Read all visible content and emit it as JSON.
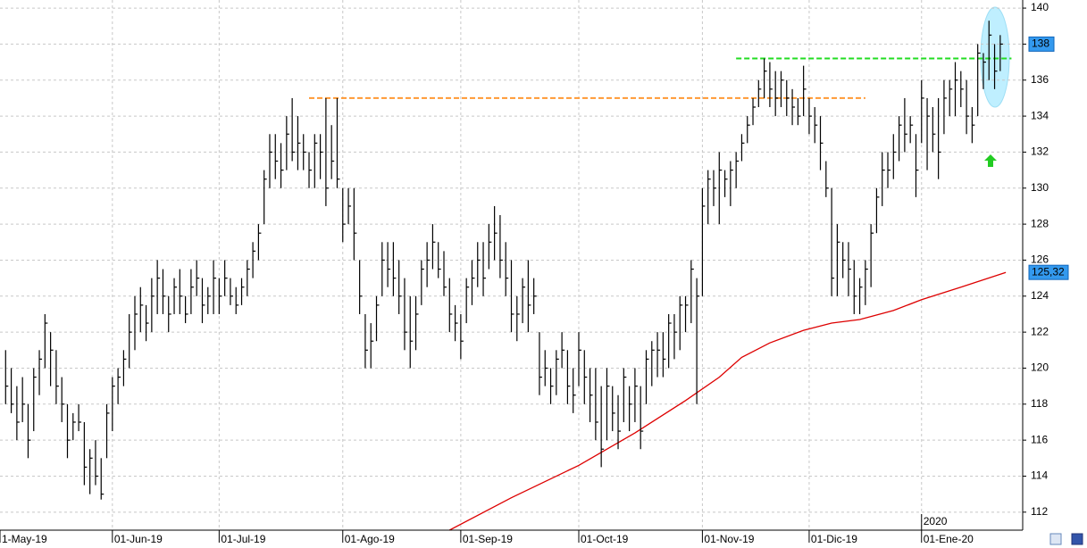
{
  "chart_data": {
    "type": "ohlc",
    "xlim": [
      -1,
      181
    ],
    "ylim": [
      111,
      140.45
    ],
    "yticks": [
      112,
      114,
      116,
      118,
      120,
      122,
      124,
      126,
      128,
      130,
      132,
      134,
      136,
      138,
      140
    ],
    "xticks": [
      {
        "value": -1,
        "label": "1-May-19"
      },
      {
        "value": 19,
        "label": "01-Jun-19"
      },
      {
        "value": 38,
        "label": "01-Jul-19"
      },
      {
        "value": 60,
        "label": "01-Ago-19"
      },
      {
        "value": 81,
        "label": "01-Sep-19"
      },
      {
        "value": 102,
        "label": "01-Oct-19"
      },
      {
        "value": 124,
        "label": "01-Nov-19"
      },
      {
        "value": 143,
        "label": "01-Dic-19"
      },
      {
        "value": 163,
        "label": "01-Ene-20"
      }
    ],
    "year_label": {
      "value": 163,
      "label": "2020"
    },
    "grid": true,
    "color": "#000000",
    "high": [
      121,
      120,
      119,
      119.5,
      118,
      120,
      121,
      123,
      122,
      121,
      119.5,
      118,
      117.5,
      118,
      117,
      115.5,
      116,
      115,
      118,
      119.5,
      120,
      121,
      123,
      124,
      124.5,
      123.5,
      125,
      126,
      125.5,
      124,
      125,
      125.5,
      124,
      125.5,
      126,
      125,
      124.5,
      126,
      125,
      126,
      125,
      124.5,
      125,
      126,
      127,
      128,
      131,
      133,
      133,
      132.5,
      134,
      135,
      134,
      133,
      132,
      133,
      133,
      135,
      133.5,
      135,
      130,
      130,
      130,
      126,
      123,
      122.5,
      124,
      127,
      127,
      127,
      126,
      125,
      124,
      124,
      126,
      127,
      128,
      127,
      126.5,
      125,
      123.5,
      123,
      125,
      126,
      127,
      127,
      128,
      129,
      128.5,
      127,
      126,
      124,
      125,
      126,
      125,
      122,
      121,
      120,
      121,
      122,
      121,
      120,
      122,
      121,
      120,
      120,
      119,
      120,
      119,
      118.5,
      120,
      119,
      120,
      119,
      121,
      121.5,
      122,
      122,
      123,
      123,
      124,
      124,
      126,
      125,
      130,
      131,
      131,
      132,
      131,
      131.5,
      132,
      133,
      134,
      135,
      136,
      137.2,
      137,
      136.5,
      136.5,
      136,
      135.5,
      135,
      136.8,
      135,
      134.5,
      134,
      131.5,
      130,
      128,
      127,
      127,
      126,
      125,
      126,
      128,
      130,
      132,
      132,
      133,
      134,
      135,
      134,
      133,
      136,
      135,
      134.5,
      135,
      136,
      136,
      137,
      136.5,
      136,
      134.5,
      138,
      137.5,
      139.3,
      138,
      138.5
    ],
    "low": [
      118,
      117.5,
      116,
      117,
      115,
      116.5,
      118.5,
      120,
      119,
      118,
      117,
      115,
      116,
      116.5,
      113.5,
      113,
      113.5,
      112.7,
      115,
      116.5,
      118,
      119,
      120,
      121,
      122,
      121.5,
      122,
      123,
      123,
      122,
      123,
      123,
      122.5,
      123,
      124,
      122.5,
      123,
      123,
      123,
      124,
      123.5,
      123,
      123.5,
      124,
      125,
      126,
      128,
      130,
      130.5,
      130,
      131,
      131.5,
      131,
      131,
      130,
      130,
      130.5,
      129,
      130.5,
      130,
      127,
      128,
      126,
      123,
      120,
      120,
      121.5,
      124,
      124.5,
      124,
      123,
      121,
      120,
      121,
      123.5,
      124.5,
      125.5,
      125,
      124,
      122,
      121.5,
      120.5,
      122.5,
      123.5,
      124.5,
      124,
      125.5,
      126,
      125,
      124,
      122,
      121.5,
      122.5,
      122,
      123,
      118.5,
      119,
      118,
      118.5,
      120,
      118,
      117.5,
      119,
      118,
      117,
      116,
      114.5,
      116,
      116.5,
      115.5,
      117,
      116.5,
      117,
      115.5,
      118,
      119,
      119.5,
      119.5,
      120,
      120.5,
      121,
      122,
      122.5,
      118,
      124,
      128,
      129,
      128,
      129.5,
      129,
      130,
      131.5,
      132.5,
      133.5,
      134.5,
      135,
      134.5,
      134,
      134.5,
      134,
      133.5,
      133.5,
      134,
      133,
      132.5,
      131,
      129.5,
      124,
      124,
      125,
      124,
      123,
      123,
      123.5,
      124.5,
      127.5,
      129,
      130,
      130.5,
      131.5,
      132,
      132.5,
      129.5,
      132.5,
      131,
      132,
      130.5,
      133,
      134,
      134,
      134.5,
      133,
      132.5,
      134,
      135.5,
      136,
      135.5,
      136.5
    ],
    "close": [
      119,
      118,
      117,
      118,
      116,
      119.5,
      120.5,
      122.5,
      121,
      119,
      118,
      116,
      117,
      117,
      114.5,
      115,
      114,
      113,
      117.5,
      119,
      119.5,
      120.5,
      122,
      123,
      123.5,
      122.5,
      124,
      125,
      124,
      123,
      124.5,
      124,
      123,
      124.5,
      125,
      123.5,
      124,
      125,
      124,
      125,
      124,
      123.5,
      124.5,
      125.5,
      126.5,
      127.5,
      130.5,
      132,
      131.5,
      131,
      133,
      132,
      132.5,
      132,
      131,
      132.5,
      132,
      130,
      131.5,
      130.5,
      128,
      129,
      127.5,
      124,
      121,
      121.5,
      123.5,
      126,
      125.5,
      125,
      124,
      122,
      121.5,
      123,
      125.5,
      126,
      127,
      125.5,
      124.5,
      123,
      122.5,
      121.5,
      124.5,
      125,
      126,
      125,
      127,
      127.5,
      126,
      125,
      123,
      123,
      124.5,
      123.5,
      124,
      119.5,
      120,
      119,
      120.5,
      121,
      119,
      118.5,
      121,
      119.5,
      118.5,
      117,
      115.5,
      119,
      117.5,
      116.5,
      119.5,
      118,
      119,
      116.5,
      120.5,
      121,
      121,
      120.5,
      122.5,
      122,
      123.5,
      123.5,
      125.5,
      124,
      129,
      130.5,
      130,
      131,
      130.5,
      131,
      131.5,
      132.5,
      133.5,
      134.5,
      135.5,
      136.5,
      135.5,
      135,
      136,
      135,
      134.5,
      134,
      135.5,
      134,
      133.5,
      132.5,
      130,
      125,
      127,
      126,
      125.5,
      124,
      124.5,
      125.5,
      127.5,
      129.5,
      131,
      131,
      132,
      133.5,
      133,
      133.5,
      131,
      135,
      134,
      133,
      132,
      135,
      135.5,
      136,
      135.5,
      134,
      133.5,
      137.5,
      137,
      138.5,
      136.5,
      138
    ],
    "moving_average": {
      "color": "#dd0000",
      "x": [
        79,
        90,
        102,
        112,
        121,
        127,
        131,
        136,
        142,
        147,
        152,
        158,
        163,
        170,
        178
      ],
      "values": [
        111,
        112.8,
        114.6,
        116.4,
        118.2,
        119.5,
        120.6,
        121.4,
        122.1,
        122.5,
        122.7,
        123.2,
        123.8,
        124.5,
        125.32
      ]
    },
    "levels": [
      {
        "value": 135,
        "color": "#ff9933",
        "x": [
          54,
          153
        ]
      },
      {
        "value": 137.2,
        "color": "#22dd22",
        "x": [
          130,
          179
        ]
      }
    ],
    "price_labels": [
      {
        "value": 138,
        "label": "138"
      },
      {
        "value": 125.32,
        "label": "125,32"
      }
    ]
  }
}
